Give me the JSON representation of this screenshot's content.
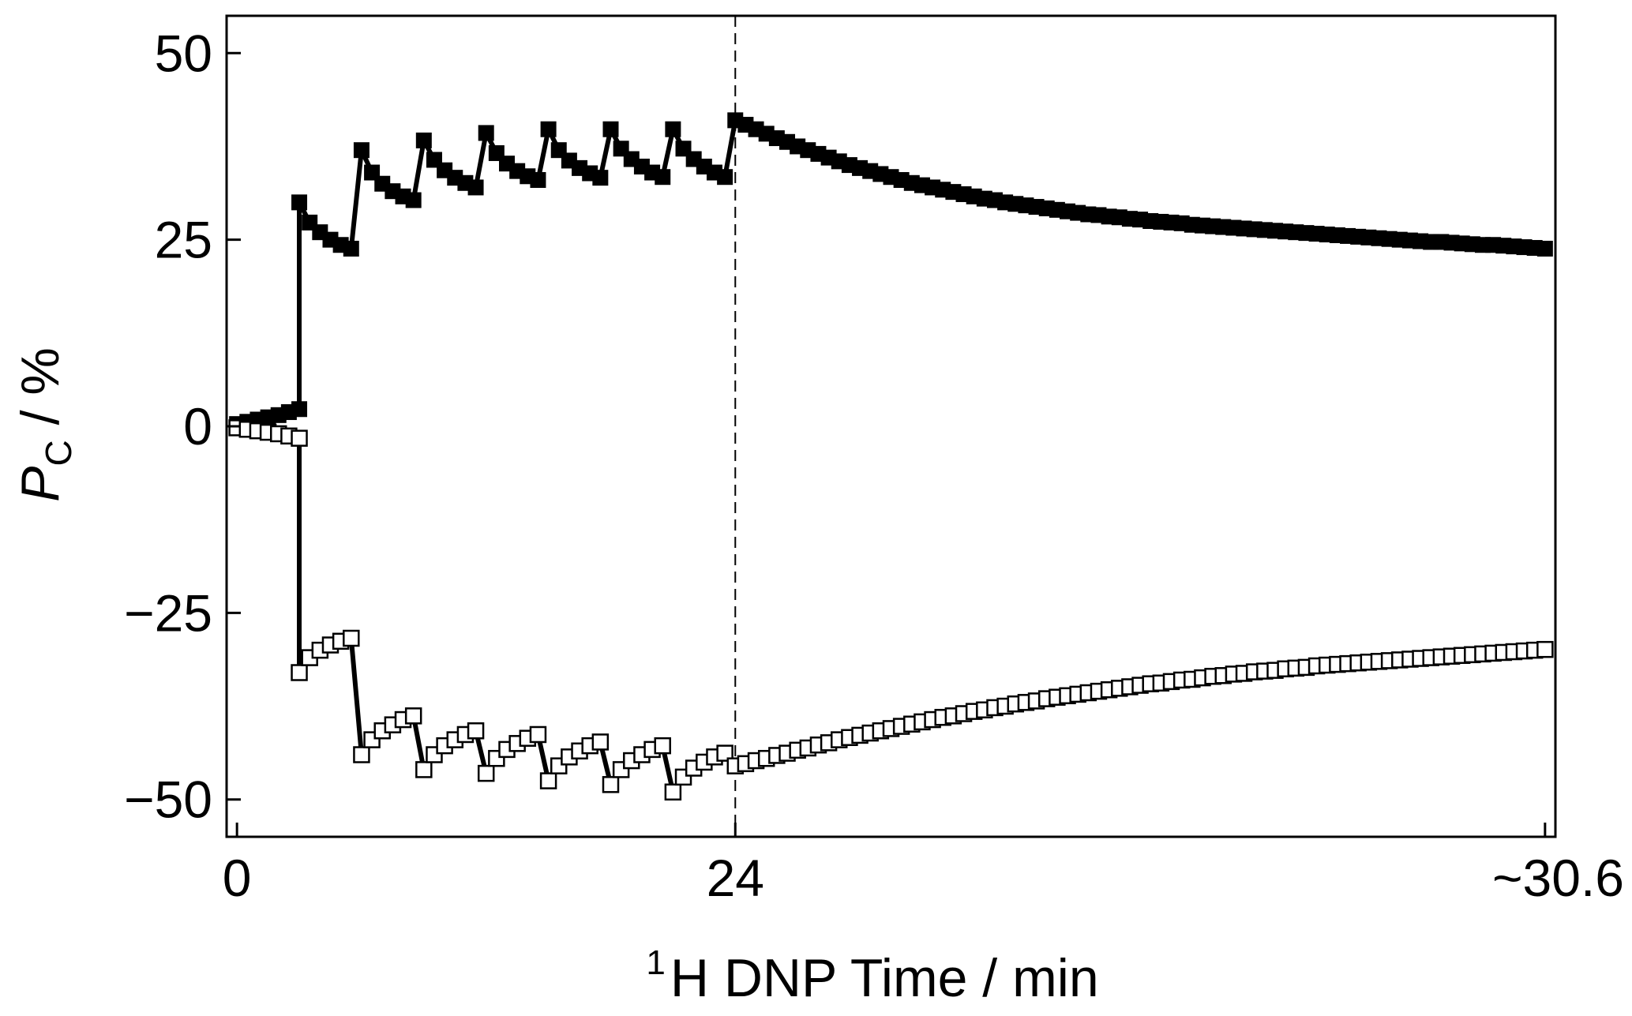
{
  "chart_data": {
    "type": "scatter",
    "title": "",
    "xlabel": {
      "superscript": "1",
      "text": "H DNP Time / min"
    },
    "ylabel": {
      "italic": "P",
      "subscript": "C",
      "rest": " / %"
    },
    "xlim": [
      -0.5,
      63.5
    ],
    "ylim": [
      -55,
      55
    ],
    "x_ticks": [
      {
        "value": 0,
        "label": "0"
      },
      {
        "value": 24,
        "label": "24"
      },
      {
        "value": 63,
        "label": "~30.6"
      }
    ],
    "y_ticks": [
      {
        "value": 50,
        "label": "50"
      },
      {
        "value": 25,
        "label": "25"
      },
      {
        "value": 0,
        "label": "0"
      },
      {
        "value": -25,
        "label": "−25"
      },
      {
        "value": -50,
        "label": "−50"
      }
    ],
    "x_axis_note": "x axis is piecewise: 0 to 24 min linear, then compressed from 24 to ~30.6 min",
    "reference_line": {
      "x": 24,
      "style": "dashed"
    },
    "grid": false,
    "legend": "none",
    "series": [
      {
        "marker": "filled-square",
        "color": "#000000",
        "points": [
          [
            0,
            0.3
          ],
          [
            0.5,
            0.6
          ],
          [
            1,
            0.9
          ],
          [
            1.5,
            1.2
          ],
          [
            2,
            1.5
          ],
          [
            2.5,
            1.9
          ],
          [
            3,
            2.3
          ],
          [
            3,
            30.0
          ],
          [
            3.5,
            27.3
          ],
          [
            4,
            26.0
          ],
          [
            4.5,
            25.0
          ],
          [
            5,
            24.3
          ],
          [
            5.5,
            23.8
          ],
          [
            6,
            37.0
          ],
          [
            6.5,
            34.0
          ],
          [
            7,
            32.5
          ],
          [
            7.5,
            31.5
          ],
          [
            8,
            30.8
          ],
          [
            8.5,
            30.3
          ],
          [
            9,
            38.3
          ],
          [
            9.5,
            35.7
          ],
          [
            10,
            34.3
          ],
          [
            10.5,
            33.3
          ],
          [
            11,
            32.6
          ],
          [
            11.5,
            32.0
          ],
          [
            12,
            39.3
          ],
          [
            12.5,
            36.6
          ],
          [
            13,
            35.2
          ],
          [
            13.5,
            34.2
          ],
          [
            14,
            33.5
          ],
          [
            14.5,
            33.0
          ],
          [
            15,
            39.8
          ],
          [
            15.5,
            37.0
          ],
          [
            16,
            35.6
          ],
          [
            16.5,
            34.6
          ],
          [
            17,
            33.9
          ],
          [
            17.5,
            33.3
          ],
          [
            18,
            39.8
          ],
          [
            18.5,
            37.2
          ],
          [
            19,
            35.8
          ],
          [
            19.5,
            34.8
          ],
          [
            20,
            34.0
          ],
          [
            20.5,
            33.4
          ],
          [
            21,
            39.8
          ],
          [
            21.5,
            37.2
          ],
          [
            22,
            35.8
          ],
          [
            22.5,
            34.8
          ],
          [
            23,
            34.0
          ],
          [
            23.5,
            33.4
          ],
          [
            24,
            41.0
          ],
          [
            24.5,
            40.4
          ],
          [
            25,
            39.8
          ],
          [
            25.5,
            39.2
          ],
          [
            26,
            38.6
          ],
          [
            26.5,
            38.1
          ],
          [
            27,
            37.5
          ],
          [
            27.5,
            37.0
          ],
          [
            28,
            36.5
          ],
          [
            28.5,
            36.0
          ],
          [
            29,
            35.5
          ],
          [
            29.5,
            35.0
          ],
          [
            30,
            34.6
          ],
          [
            30.5,
            34.2
          ],
          [
            31,
            33.8
          ],
          [
            31.5,
            33.4
          ],
          [
            32,
            33.0
          ],
          [
            32.5,
            32.6
          ],
          [
            33,
            32.3
          ],
          [
            33.5,
            32.0
          ],
          [
            34,
            31.7
          ],
          [
            34.5,
            31.4
          ],
          [
            35,
            31.1
          ],
          [
            35.5,
            30.8
          ],
          [
            36,
            30.5
          ],
          [
            36.5,
            30.3
          ],
          [
            37,
            30.0
          ],
          [
            37.5,
            29.8
          ],
          [
            38,
            29.6
          ],
          [
            38.5,
            29.4
          ],
          [
            39,
            29.2
          ],
          [
            39.5,
            29.0
          ],
          [
            40,
            28.8
          ],
          [
            40.5,
            28.6
          ],
          [
            41,
            28.4
          ],
          [
            41.5,
            28.3
          ],
          [
            42,
            28.1
          ],
          [
            42.5,
            28.0
          ],
          [
            43,
            27.8
          ],
          [
            43.5,
            27.7
          ],
          [
            44,
            27.5
          ],
          [
            44.5,
            27.4
          ],
          [
            45,
            27.3
          ],
          [
            45.5,
            27.2
          ],
          [
            46,
            27.0
          ],
          [
            46.5,
            26.9
          ],
          [
            47,
            26.8
          ],
          [
            47.5,
            26.7
          ],
          [
            48,
            26.6
          ],
          [
            48.5,
            26.5
          ],
          [
            49,
            26.4
          ],
          [
            49.5,
            26.3
          ],
          [
            50,
            26.2
          ],
          [
            50.5,
            26.1
          ],
          [
            51,
            26.0
          ],
          [
            51.5,
            25.9
          ],
          [
            52,
            25.8
          ],
          [
            52.5,
            25.7
          ],
          [
            53,
            25.6
          ],
          [
            53.5,
            25.5
          ],
          [
            54,
            25.4
          ],
          [
            54.5,
            25.3
          ],
          [
            55,
            25.2
          ],
          [
            55.5,
            25.1
          ],
          [
            56,
            25.0
          ],
          [
            56.5,
            24.9
          ],
          [
            57,
            24.8
          ],
          [
            57.5,
            24.7
          ],
          [
            58,
            24.7
          ],
          [
            58.5,
            24.6
          ],
          [
            59,
            24.5
          ],
          [
            59.5,
            24.4
          ],
          [
            60,
            24.3
          ],
          [
            60.5,
            24.3
          ],
          [
            61,
            24.2
          ],
          [
            61.5,
            24.1
          ],
          [
            62,
            24.0
          ],
          [
            62.5,
            23.9
          ],
          [
            63,
            23.8
          ]
        ]
      },
      {
        "marker": "open-square",
        "color": "#000000",
        "points": [
          [
            0,
            -0.2
          ],
          [
            0.5,
            -0.4
          ],
          [
            1,
            -0.6
          ],
          [
            1.5,
            -0.8
          ],
          [
            2,
            -1.0
          ],
          [
            2.5,
            -1.3
          ],
          [
            3,
            -1.6
          ],
          [
            3,
            -33.0
          ],
          [
            3.5,
            -31.0
          ],
          [
            4,
            -30.0
          ],
          [
            4.5,
            -29.3
          ],
          [
            5,
            -28.8
          ],
          [
            5.5,
            -28.4
          ],
          [
            6,
            -44.0
          ],
          [
            6.5,
            -42.0
          ],
          [
            7,
            -40.8
          ],
          [
            7.5,
            -40.0
          ],
          [
            8,
            -39.3
          ],
          [
            8.5,
            -38.8
          ],
          [
            9,
            -46.0
          ],
          [
            9.5,
            -44.0
          ],
          [
            10,
            -42.8
          ],
          [
            10.5,
            -42.0
          ],
          [
            11,
            -41.3
          ],
          [
            11.5,
            -40.8
          ],
          [
            12,
            -46.5
          ],
          [
            12.5,
            -44.5
          ],
          [
            13,
            -43.3
          ],
          [
            13.5,
            -42.5
          ],
          [
            14,
            -41.8
          ],
          [
            14.5,
            -41.3
          ],
          [
            15,
            -47.5
          ],
          [
            15.5,
            -45.5
          ],
          [
            16,
            -44.3
          ],
          [
            16.5,
            -43.5
          ],
          [
            17,
            -42.8
          ],
          [
            17.5,
            -42.3
          ],
          [
            18,
            -48.0
          ],
          [
            18.5,
            -46.0
          ],
          [
            19,
            -44.8
          ],
          [
            19.5,
            -44.0
          ],
          [
            20,
            -43.3
          ],
          [
            20.5,
            -42.8
          ],
          [
            21,
            -49.0
          ],
          [
            21.5,
            -47.0
          ],
          [
            22,
            -45.8
          ],
          [
            22.5,
            -45.0
          ],
          [
            23,
            -44.3
          ],
          [
            23.5,
            -43.8
          ],
          [
            24,
            -45.5
          ],
          [
            24.5,
            -45.2
          ],
          [
            25,
            -44.8
          ],
          [
            25.5,
            -44.5
          ],
          [
            26,
            -44.1
          ],
          [
            26.5,
            -43.8
          ],
          [
            27,
            -43.4
          ],
          [
            27.5,
            -43.1
          ],
          [
            28,
            -42.7
          ],
          [
            28.5,
            -42.4
          ],
          [
            29,
            -42.0
          ],
          [
            29.5,
            -41.7
          ],
          [
            30,
            -41.4
          ],
          [
            30.5,
            -41.1
          ],
          [
            31,
            -40.8
          ],
          [
            31.5,
            -40.5
          ],
          [
            32,
            -40.2
          ],
          [
            32.5,
            -39.9
          ],
          [
            33,
            -39.6
          ],
          [
            33.5,
            -39.3
          ],
          [
            34,
            -39.0
          ],
          [
            34.5,
            -38.8
          ],
          [
            35,
            -38.5
          ],
          [
            35.5,
            -38.2
          ],
          [
            36,
            -38.0
          ],
          [
            36.5,
            -37.7
          ],
          [
            37,
            -37.5
          ],
          [
            37.5,
            -37.2
          ],
          [
            38,
            -37.0
          ],
          [
            38.5,
            -36.8
          ],
          [
            39,
            -36.5
          ],
          [
            39.5,
            -36.3
          ],
          [
            40,
            -36.1
          ],
          [
            40.5,
            -35.9
          ],
          [
            41,
            -35.7
          ],
          [
            41.5,
            -35.5
          ],
          [
            42,
            -35.3
          ],
          [
            42.5,
            -35.1
          ],
          [
            43,
            -34.9
          ],
          [
            43.5,
            -34.7
          ],
          [
            44,
            -34.5
          ],
          [
            44.5,
            -34.4
          ],
          [
            45,
            -34.2
          ],
          [
            45.5,
            -34.0
          ],
          [
            46,
            -33.9
          ],
          [
            46.5,
            -33.7
          ],
          [
            47,
            -33.5
          ],
          [
            47.5,
            -33.4
          ],
          [
            48,
            -33.2
          ],
          [
            48.5,
            -33.1
          ],
          [
            49,
            -32.9
          ],
          [
            49.5,
            -32.8
          ],
          [
            50,
            -32.7
          ],
          [
            50.5,
            -32.5
          ],
          [
            51,
            -32.4
          ],
          [
            51.5,
            -32.3
          ],
          [
            52,
            -32.1
          ],
          [
            52.5,
            -32.0
          ],
          [
            53,
            -31.9
          ],
          [
            53.5,
            -31.8
          ],
          [
            54,
            -31.7
          ],
          [
            54.5,
            -31.6
          ],
          [
            55,
            -31.5
          ],
          [
            55.5,
            -31.4
          ],
          [
            56,
            -31.3
          ],
          [
            56.5,
            -31.2
          ],
          [
            57,
            -31.1
          ],
          [
            57.5,
            -31.0
          ],
          [
            58,
            -30.9
          ],
          [
            58.5,
            -30.8
          ],
          [
            59,
            -30.7
          ],
          [
            59.5,
            -30.6
          ],
          [
            60,
            -30.5
          ],
          [
            60.5,
            -30.4
          ],
          [
            61,
            -30.3
          ],
          [
            61.5,
            -30.2
          ],
          [
            62,
            -30.1
          ],
          [
            62.5,
            -30.0
          ],
          [
            63,
            -29.9
          ]
        ]
      }
    ]
  }
}
